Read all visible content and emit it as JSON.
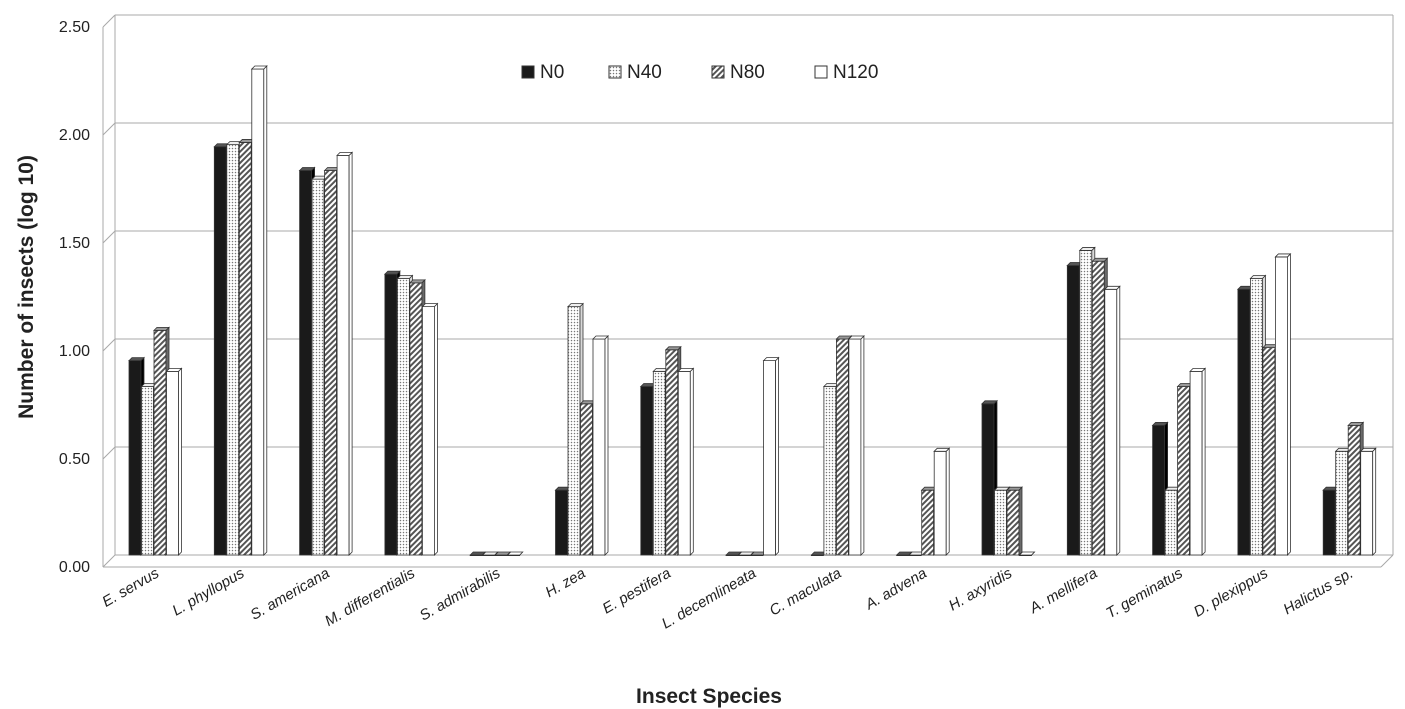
{
  "chart_data": {
    "type": "bar",
    "title": "",
    "xlabel": "Insect Species",
    "ylabel": "Number  of insects (log 10)",
    "ylim": [
      0,
      2.5
    ],
    "yticks": [
      "0.00",
      "0.50",
      "1.00",
      "1.50",
      "2.00",
      "2.50"
    ],
    "grid": true,
    "legend_position": "top-center",
    "categories": [
      "E. servus",
      "L. phyllopus",
      "S. americana",
      "M. differentialis",
      "S. admirabilis",
      "H. zea",
      "E. pestifera",
      "L. decemlineata",
      "C. maculata",
      "A. advena",
      "H. axyridis",
      "A. mellifera",
      "T. geminatus",
      "D. plexippus",
      "Halictus sp."
    ],
    "series": [
      {
        "name": "N0",
        "pattern": "solid",
        "values": [
          0.9,
          1.89,
          1.78,
          1.3,
          0.0,
          0.3,
          0.78,
          0.0,
          0.0,
          0.0,
          0.7,
          1.34,
          0.6,
          1.23,
          0.3
        ]
      },
      {
        "name": "N40",
        "pattern": "dotted",
        "values": [
          0.78,
          1.9,
          1.74,
          1.28,
          0.0,
          1.15,
          0.85,
          0.0,
          0.78,
          0.0,
          0.3,
          1.41,
          0.3,
          1.28,
          0.48
        ]
      },
      {
        "name": "N80",
        "pattern": "hatched",
        "values": [
          1.04,
          1.91,
          1.78,
          1.26,
          0.0,
          0.7,
          0.95,
          0.0,
          1.0,
          0.3,
          0.3,
          1.36,
          0.78,
          0.96,
          0.6
        ]
      },
      {
        "name": "N120",
        "pattern": "open",
        "values": [
          0.85,
          2.25,
          1.85,
          1.15,
          0.0,
          1.0,
          0.85,
          0.9,
          1.0,
          0.48,
          0.0,
          1.23,
          0.85,
          1.38,
          0.48
        ]
      }
    ]
  },
  "colors": {
    "bar_solid": "#1a1a1a",
    "bar_outline": "#333333",
    "grid": "#a8a8a8",
    "dots": "#777777",
    "hatch": "#555555"
  }
}
